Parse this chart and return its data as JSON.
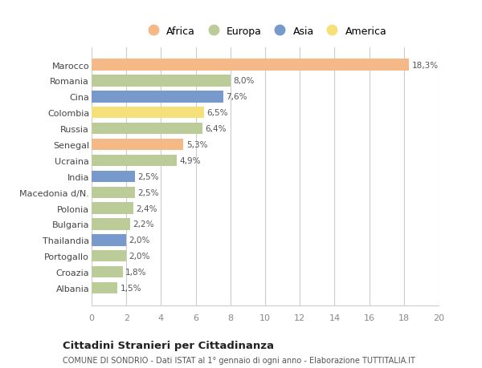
{
  "countries": [
    "Albania",
    "Croazia",
    "Portogallo",
    "Thailandia",
    "Bulgaria",
    "Polonia",
    "Macedonia d/N.",
    "India",
    "Ucraina",
    "Senegal",
    "Russia",
    "Colombia",
    "Cina",
    "Romania",
    "Marocco"
  ],
  "values": [
    1.5,
    1.8,
    2.0,
    2.0,
    2.2,
    2.4,
    2.5,
    2.5,
    4.9,
    5.3,
    6.4,
    6.5,
    7.6,
    8.0,
    18.3
  ],
  "labels": [
    "1,5%",
    "1,8%",
    "2,0%",
    "2,0%",
    "2,2%",
    "2,4%",
    "2,5%",
    "2,5%",
    "4,9%",
    "5,3%",
    "6,4%",
    "6,5%",
    "7,6%",
    "8,0%",
    "18,3%"
  ],
  "continents": [
    "Europa",
    "Europa",
    "Europa",
    "Asia",
    "Europa",
    "Europa",
    "Europa",
    "Asia",
    "Europa",
    "Africa",
    "Europa",
    "America",
    "Asia",
    "Europa",
    "Africa"
  ],
  "colors": {
    "Africa": "#F5B887",
    "Europa": "#BBCC99",
    "Asia": "#7799CC",
    "America": "#F5E07A"
  },
  "legend_order": [
    "Africa",
    "Europa",
    "Asia",
    "America"
  ],
  "xlim": [
    0,
    20
  ],
  "xticks": [
    0,
    2,
    4,
    6,
    8,
    10,
    12,
    14,
    16,
    18,
    20
  ],
  "title": "Cittadini Stranieri per Cittadinanza",
  "subtitle": "COMUNE DI SONDRIO - Dati ISTAT al 1° gennaio di ogni anno - Elaborazione TUTTITALIA.IT",
  "background_color": "#FFFFFF",
  "grid_color": "#CCCCCC",
  "bar_height": 0.72
}
